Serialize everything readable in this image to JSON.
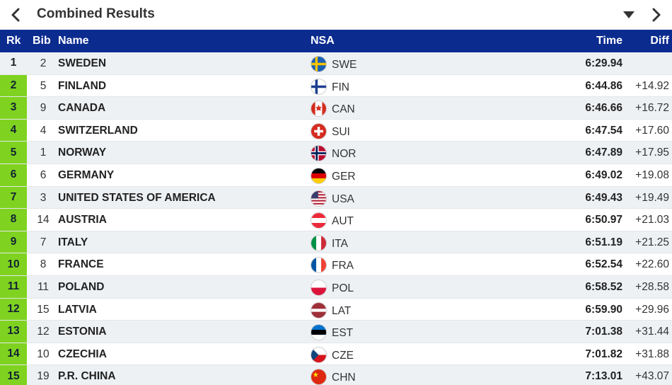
{
  "header": {
    "title": "Combined Results",
    "back_icon": "chevron-left-icon",
    "dropdown_icon": "caret-down-icon",
    "forward_icon": "chevron-right-icon"
  },
  "columns": {
    "rk": "Rk",
    "bib": "Bib",
    "name": "Name",
    "nsa": "NSA",
    "time": "Time",
    "diff": "Diff"
  },
  "colors": {
    "header_bg": "#0b2b8f",
    "rank_highlight": "#7fd320",
    "row_alt": "#eef1f4"
  },
  "rows": [
    {
      "rk": "1",
      "bib": "2",
      "name": "SWEDEN",
      "nsa": "SWE",
      "time": "6:29.94",
      "diff": ""
    },
    {
      "rk": "2",
      "bib": "5",
      "name": "FINLAND",
      "nsa": "FIN",
      "time": "6:44.86",
      "diff": "+14.92"
    },
    {
      "rk": "3",
      "bib": "9",
      "name": "CANADA",
      "nsa": "CAN",
      "time": "6:46.66",
      "diff": "+16.72"
    },
    {
      "rk": "4",
      "bib": "4",
      "name": "SWITZERLAND",
      "nsa": "SUI",
      "time": "6:47.54",
      "diff": "+17.60"
    },
    {
      "rk": "5",
      "bib": "1",
      "name": "NORWAY",
      "nsa": "NOR",
      "time": "6:47.89",
      "diff": "+17.95"
    },
    {
      "rk": "6",
      "bib": "6",
      "name": "GERMANY",
      "nsa": "GER",
      "time": "6:49.02",
      "diff": "+19.08"
    },
    {
      "rk": "7",
      "bib": "3",
      "name": "UNITED STATES OF AMERICA",
      "nsa": "USA",
      "time": "6:49.43",
      "diff": "+19.49"
    },
    {
      "rk": "8",
      "bib": "14",
      "name": "AUSTRIA",
      "nsa": "AUT",
      "time": "6:50.97",
      "diff": "+21.03"
    },
    {
      "rk": "9",
      "bib": "7",
      "name": "ITALY",
      "nsa": "ITA",
      "time": "6:51.19",
      "diff": "+21.25"
    },
    {
      "rk": "10",
      "bib": "8",
      "name": "FRANCE",
      "nsa": "FRA",
      "time": "6:52.54",
      "diff": "+22.60"
    },
    {
      "rk": "11",
      "bib": "11",
      "name": "POLAND",
      "nsa": "POL",
      "time": "6:58.52",
      "diff": "+28.58"
    },
    {
      "rk": "12",
      "bib": "15",
      "name": "LATVIA",
      "nsa": "LAT",
      "time": "6:59.90",
      "diff": "+29.96"
    },
    {
      "rk": "13",
      "bib": "12",
      "name": "ESTONIA",
      "nsa": "EST",
      "time": "7:01.38",
      "diff": "+31.44"
    },
    {
      "rk": "14",
      "bib": "10",
      "name": "CZECHIA",
      "nsa": "CZE",
      "time": "7:01.82",
      "diff": "+31.88"
    },
    {
      "rk": "15",
      "bib": "19",
      "name": "P.R. CHINA",
      "nsa": "CHN",
      "time": "7:13.01",
      "diff": "+43.07"
    }
  ]
}
